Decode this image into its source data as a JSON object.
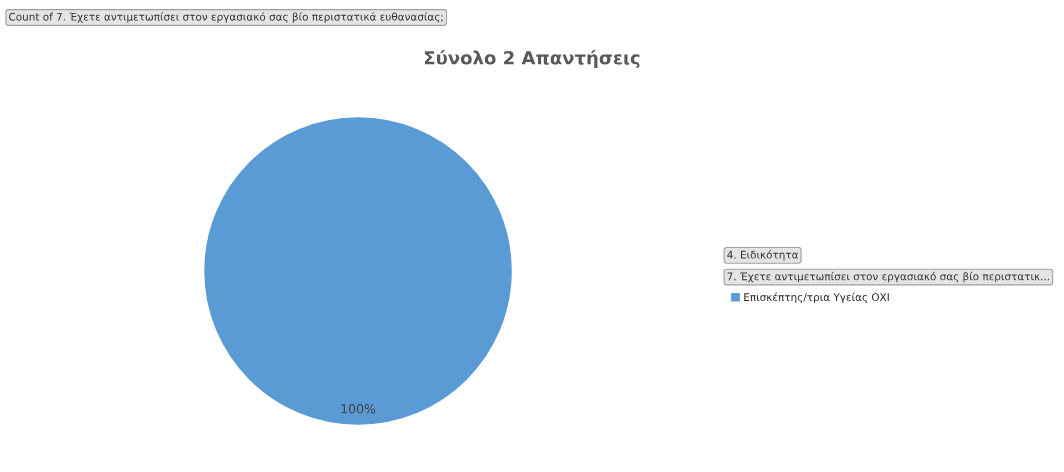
{
  "chart_data": {
    "type": "pie",
    "title": "Σύνολο 2 Απαντήσεις",
    "categories": [
      "Επισκέπτης/τρια Υγείας ΟΧΙ"
    ],
    "values": [
      100
    ],
    "colors": [
      "#5b9bd5"
    ],
    "value_labels": [
      "100%"
    ],
    "annotations": [
      "Count of 7. Έχετε αντιμετωπίσει στον εργασιακό σας βίο περιστατικά ευθανασίας;",
      "4. Ειδικότητα",
      "7. Έχετε αντιμετωπίσει στον εργασιακό σας βίο περιστατικ..."
    ],
    "legend": "right"
  }
}
